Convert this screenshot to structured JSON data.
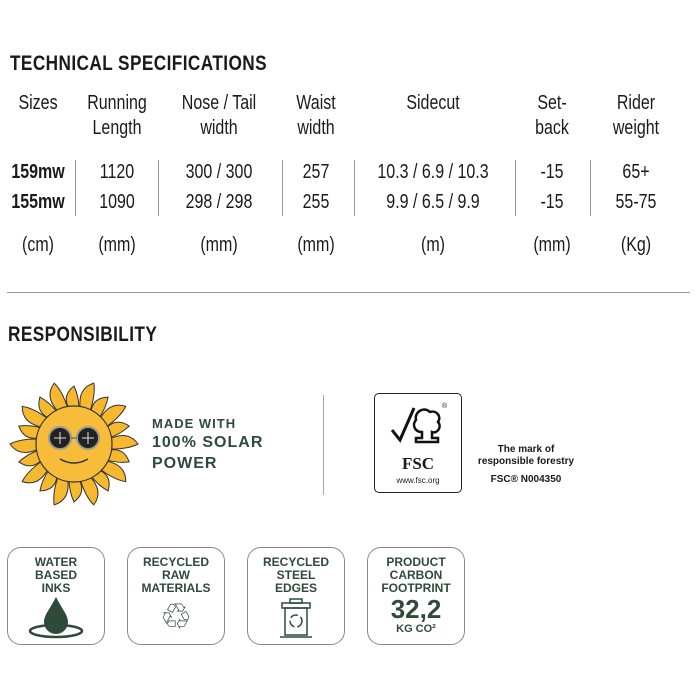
{
  "specs": {
    "title": "TECHNICAL SPECIFICATIONS",
    "headers": [
      [
        "Sizes",
        ""
      ],
      [
        "Running",
        "Length"
      ],
      [
        "Nose / Tail",
        "width"
      ],
      [
        "Waist",
        "width"
      ],
      [
        "Sidecut",
        ""
      ],
      [
        "Set-",
        "back"
      ],
      [
        "Rider",
        "weight"
      ]
    ],
    "rows": [
      [
        "159mw",
        "1120",
        "300 / 300",
        "257",
        "10.3 / 6.9 / 10.3",
        "-15",
        "65+"
      ],
      [
        "155mw",
        "1090",
        "298 / 298",
        "255",
        "9.9 / 6.5 / 9.9",
        "-15",
        "55-75"
      ]
    ],
    "units": [
      "(cm)",
      "(mm)",
      "(mm)",
      "(mm)",
      "(m)",
      "(mm)",
      "(Kg)"
    ]
  },
  "responsibility": {
    "title": "RESPONSIBILITY",
    "solar": {
      "line1": "MADE WITH",
      "line2": "100% SOLAR",
      "line3": "POWER",
      "icon": "sun-with-sunglasses-icon"
    },
    "fsc": {
      "logo_text": "FSC",
      "url": "www.fsc.org",
      "mark_line1": "The mark of",
      "mark_line2": "responsible forestry",
      "code": "FSC® N004350"
    },
    "badges": [
      {
        "lines": [
          "WATER",
          "BASED",
          "INKS"
        ],
        "icon": "water-drop-icon"
      },
      {
        "lines": [
          "RECYCLED",
          "RAW",
          "MATERIALS"
        ],
        "icon": "recycle-icon"
      },
      {
        "lines": [
          "RECYCLED",
          "STEEL",
          "EDGES"
        ],
        "icon": "recycle-bin-icon"
      },
      {
        "lines": [
          "PRODUCT",
          "CARBON",
          "FOOTPRINT"
        ],
        "value": "32,2",
        "unit": "KG CO²"
      }
    ],
    "accent_color": "#2f4a3a"
  }
}
